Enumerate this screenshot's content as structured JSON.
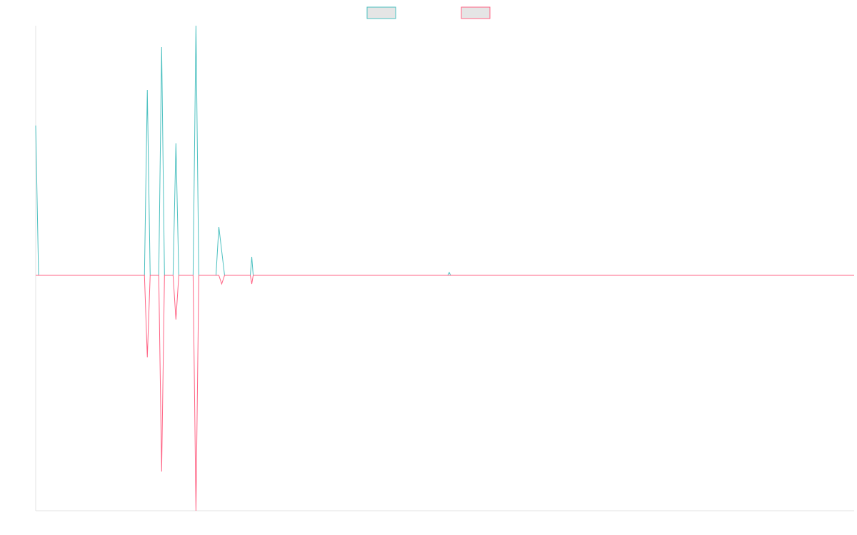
{
  "chart_data": {
    "type": "line",
    "title": "",
    "xlabel": "",
    "ylabel": "",
    "grid": false,
    "legend_position": "top-center",
    "x_range": [
      0,
      286
    ],
    "y_range": [
      -330,
      350
    ],
    "series": [
      {
        "color": "#4bc0c0",
        "fill": "#e5e5e5",
        "points": [
          {
            "x": 0,
            "y": 210
          },
          {
            "x": 1,
            "y": 0
          },
          {
            "x": 38,
            "y": 0
          },
          {
            "x": 39,
            "y": 260
          },
          {
            "x": 40,
            "y": 0
          },
          {
            "x": 43,
            "y": 0
          },
          {
            "x": 44,
            "y": 320
          },
          {
            "x": 45,
            "y": 0
          },
          {
            "x": 48,
            "y": 0
          },
          {
            "x": 49,
            "y": 185
          },
          {
            "x": 50,
            "y": 0
          },
          {
            "x": 55,
            "y": 0
          },
          {
            "x": 56,
            "y": 350
          },
          {
            "x": 57,
            "y": 0
          },
          {
            "x": 63,
            "y": 0
          },
          {
            "x": 64,
            "y": 68
          },
          {
            "x": 66,
            "y": 0
          },
          {
            "x": 75,
            "y": 0
          },
          {
            "x": 75.5,
            "y": 26
          },
          {
            "x": 76,
            "y": 0
          },
          {
            "x": 144,
            "y": 0
          },
          {
            "x": 144.5,
            "y": 4
          },
          {
            "x": 145,
            "y": 0
          },
          {
            "x": 286,
            "y": 0
          }
        ]
      },
      {
        "color": "#ff6384",
        "fill": "#e5e5e5",
        "points": [
          {
            "x": 0,
            "y": 0
          },
          {
            "x": 38,
            "y": 0
          },
          {
            "x": 39,
            "y": -115
          },
          {
            "x": 40,
            "y": 0
          },
          {
            "x": 43,
            "y": 0
          },
          {
            "x": 44,
            "y": -275
          },
          {
            "x": 45,
            "y": 0
          },
          {
            "x": 48,
            "y": 0
          },
          {
            "x": 49,
            "y": -62
          },
          {
            "x": 50,
            "y": 0
          },
          {
            "x": 55,
            "y": 0
          },
          {
            "x": 56,
            "y": -330
          },
          {
            "x": 57,
            "y": 0
          },
          {
            "x": 64,
            "y": 0
          },
          {
            "x": 65,
            "y": -12
          },
          {
            "x": 66,
            "y": 0
          },
          {
            "x": 75,
            "y": 0
          },
          {
            "x": 75.5,
            "y": -12
          },
          {
            "x": 76,
            "y": 0
          },
          {
            "x": 286,
            "y": 0
          }
        ]
      }
    ]
  }
}
